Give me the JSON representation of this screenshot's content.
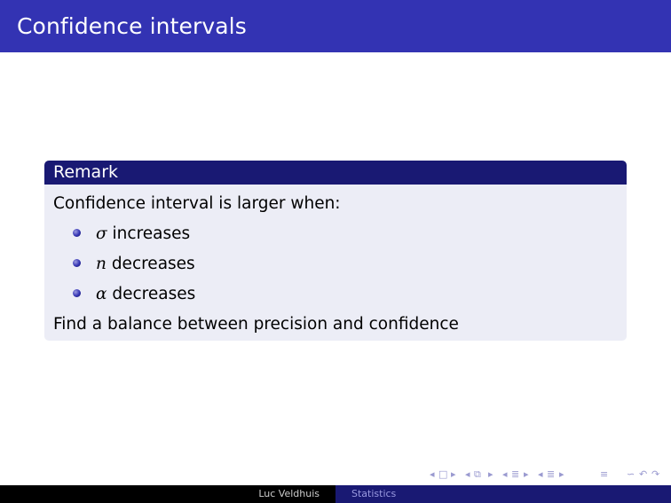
{
  "slide": {
    "title": "Confidence intervals"
  },
  "remark": {
    "heading": "Remark",
    "intro": "Confidence interval is larger when:",
    "items": [
      {
        "symbol": "σ",
        "text": "increases"
      },
      {
        "symbol": "n",
        "text": "decreases"
      },
      {
        "symbol": "α",
        "text": "decreases"
      }
    ],
    "conclusion": "Find a balance between precision and confidence"
  },
  "footer": {
    "author": "Luc Veldhuis",
    "short_title": "Statistics"
  },
  "nav": {
    "icons": [
      "frame-prev-arrow-icon",
      "frame-icon",
      "frame-next-arrow-icon",
      "subsection-prev-arrow-icon",
      "subsection-icon",
      "subsection-next-arrow-icon",
      "section-prev-arrow-icon",
      "section-icon",
      "section-next-arrow-icon",
      "slide-prev-arrow-icon",
      "slide-icon",
      "slide-next-arrow-icon",
      "appendix-icon",
      "search-icon"
    ]
  },
  "colors": {
    "title_bar": "#3333b3",
    "block_header": "#191973",
    "block_body": "#ecedf6",
    "footer_left": "#000000",
    "footer_right": "#191973"
  }
}
